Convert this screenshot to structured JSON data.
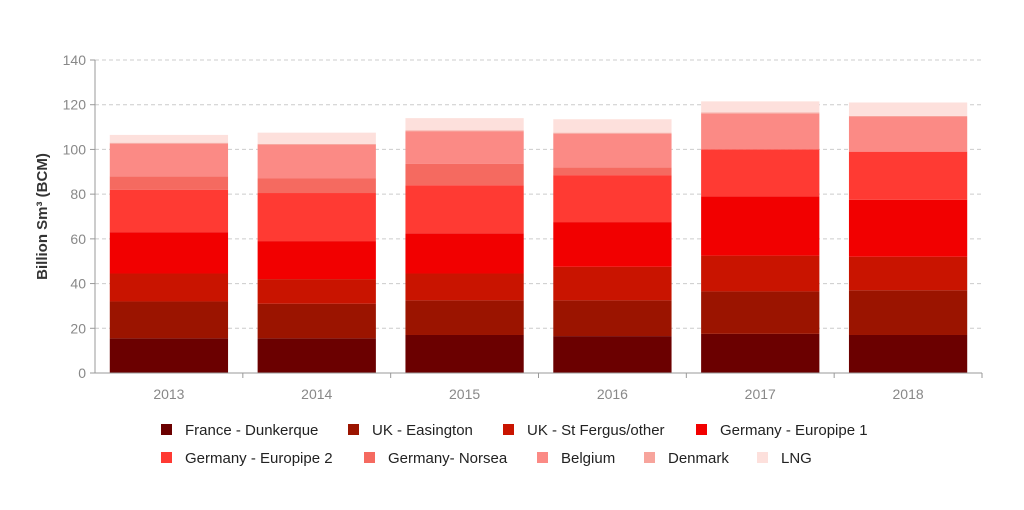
{
  "chart_data": {
    "type": "bar",
    "stacked": true,
    "title": "",
    "xlabel": "",
    "ylabel": "Billion Sm³ (BCM)",
    "ylim": [
      0,
      140
    ],
    "yticks": [
      0,
      20,
      40,
      60,
      80,
      100,
      120,
      140
    ],
    "grid": true,
    "legend_position": "bottom",
    "categories": [
      "2013",
      "2014",
      "2015",
      "2016",
      "2017",
      "2018"
    ],
    "series": [
      {
        "name": "France - Dunkerque",
        "color": "#6b0000",
        "values": [
          15.5,
          15.5,
          17.0,
          16.5,
          17.5,
          17.0
        ]
      },
      {
        "name": "UK - Easington",
        "color": "#9b1400",
        "values": [
          16.5,
          15.5,
          15.5,
          16.0,
          19.0,
          20.0
        ]
      },
      {
        "name": "UK - St Fergus/other",
        "color": "#c91400",
        "values": [
          12.5,
          11.0,
          12.0,
          15.0,
          16.0,
          15.0
        ]
      },
      {
        "name": "Germany - Europipe 1",
        "color": "#f20000",
        "values": [
          18.5,
          17.0,
          18.0,
          20.0,
          26.5,
          25.5
        ]
      },
      {
        "name": "Germany - Europipe 2",
        "color": "#ff3a33",
        "values": [
          19.0,
          21.5,
          21.5,
          21.0,
          21.0,
          21.5
        ]
      },
      {
        "name": "Germany- Norsea",
        "color": "#f56a60",
        "values": [
          6.0,
          6.5,
          9.5,
          3.5,
          0.0,
          0.0
        ]
      },
      {
        "name": "Belgium",
        "color": "#fb8a85",
        "values": [
          14.5,
          15.0,
          14.5,
          15.0,
          16.0,
          15.5
        ]
      },
      {
        "name": "Denmark",
        "color": "#f7a49c",
        "values": [
          0.5,
          0.5,
          0.5,
          0.5,
          0.5,
          0.5
        ]
      },
      {
        "name": "LNG",
        "color": "#fde0dc",
        "values": [
          3.5,
          5.0,
          5.5,
          6.0,
          5.0,
          6.0
        ]
      }
    ]
  }
}
